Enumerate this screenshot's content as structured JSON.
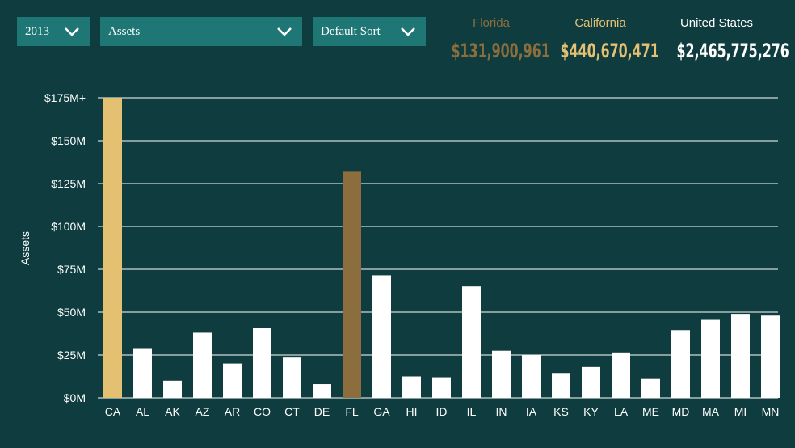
{
  "controls": {
    "year": "2013",
    "metric": "Assets",
    "sort": "Default Sort"
  },
  "stats": {
    "florida": {
      "label": "Florida",
      "value": "$131,900,961"
    },
    "california": {
      "label": "California",
      "value": "$440,670,471"
    },
    "united_states": {
      "label": "United States",
      "value": "$2,465,775,276"
    }
  },
  "colors": {
    "background": "#0f3c3e",
    "dropdown": "#1f7775",
    "california": "#e3c072",
    "florida": "#8c6e3e",
    "default_bar": "#ffffff",
    "grid": "#ffffff"
  },
  "icons": {
    "dropdown": "chevron-down-icon"
  },
  "chart_data": {
    "type": "bar",
    "ylabel": "Assets",
    "ylim": [
      0,
      175
    ],
    "y_ticks": [
      "$0M",
      "$25M",
      "$50M",
      "$75M",
      "$100M",
      "$125M",
      "$150M",
      "$175M+"
    ],
    "grid": true,
    "categories": [
      "CA",
      "AL",
      "AK",
      "AZ",
      "AR",
      "CO",
      "CT",
      "DE",
      "FL",
      "GA",
      "HI",
      "ID",
      "IL",
      "IN",
      "IA",
      "KS",
      "KY",
      "LA",
      "ME",
      "MD",
      "MA",
      "MI",
      "MN"
    ],
    "values": [
      175,
      29,
      10,
      38,
      20,
      41,
      23.5,
      8,
      131.9,
      71.5,
      12.5,
      12,
      65,
      27.5,
      25,
      14.5,
      18,
      26.5,
      11,
      39.5,
      45.5,
      49,
      48
    ],
    "highlight": {
      "CA": "california",
      "FL": "florida"
    }
  }
}
